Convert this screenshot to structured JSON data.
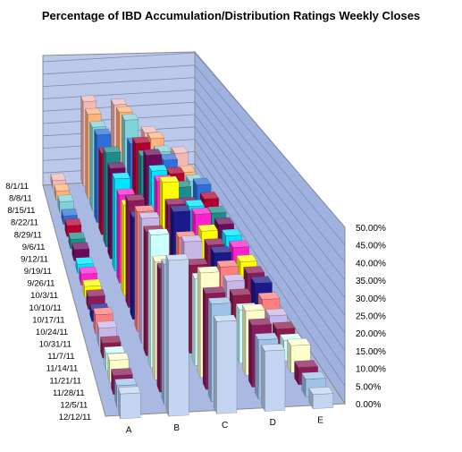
{
  "chart_data": {
    "type": "bar",
    "subtype": "3d-column",
    "title": "Percentage of IBD Accumulation/Distribution Ratings Weekly Closes",
    "categories": [
      "A",
      "B",
      "C",
      "D",
      "E"
    ],
    "series_axis_labels": [
      "8/1/11",
      "8/8/11",
      "8/15/11",
      "8/22/11",
      "8/29/11",
      "9/6/11",
      "9/12/11",
      "9/19/11",
      "9/26/11",
      "10/3/11",
      "10/10/11",
      "10/17/11",
      "10/24/11",
      "10/31/11",
      "11/7/11",
      "11/14/11",
      "11/21/11",
      "11/28/11",
      "12/5/11",
      "12/12/11"
    ],
    "series": [
      {
        "name": "8/1/11",
        "color": "#F2B8B8",
        "values": [
          3.0,
          34.0,
          32.0,
          20.0,
          11.0
        ]
      },
      {
        "name": "8/8/11",
        "color": "#FFB27A",
        "values": [
          3.5,
          33.0,
          33.0,
          22.0,
          8.0
        ]
      },
      {
        "name": "8/15/11",
        "color": "#7FD3D8",
        "values": [
          4.0,
          32.0,
          34.0,
          21.0,
          9.0
        ]
      },
      {
        "name": "8/22/11",
        "color": "#2F6FD9",
        "values": [
          3.2,
          33.0,
          29.0,
          22.0,
          12.0
        ]
      },
      {
        "name": "8/29/11",
        "color": "#B40030",
        "values": [
          4.0,
          30.0,
          33.0,
          21.0,
          11.0
        ]
      },
      {
        "name": "9/6/11",
        "color": "#1C8C8C",
        "values": [
          3.4,
          34.0,
          32.0,
          20.0,
          10.0
        ]
      },
      {
        "name": "9/12/11",
        "color": "#6B0A5A",
        "values": [
          4.0,
          32.0,
          36.0,
          18.0,
          10.0
        ]
      },
      {
        "name": "9/19/11",
        "color": "#00E5FF",
        "values": [
          3.0,
          32.0,
          34.0,
          21.0,
          10.0
        ]
      },
      {
        "name": "9/26/11",
        "color": "#FF20D0",
        "values": [
          3.8,
          30.0,
          34.0,
          22.0,
          10.0
        ]
      },
      {
        "name": "10/3/11",
        "color": "#FFFF00",
        "values": [
          3.6,
          30.0,
          37.0,
          20.0,
          9.0
        ]
      },
      {
        "name": "10/10/11",
        "color": "#8B1A5A",
        "values": [
          4.2,
          35.0,
          33.0,
          19.0,
          9.0
        ]
      },
      {
        "name": "10/17/11",
        "color": "#1A1A8C",
        "values": [
          3.5,
          33.0,
          34.0,
          20.0,
          9.5
        ]
      },
      {
        "name": "10/24/11",
        "color": "#FF7F7F",
        "values": [
          6.0,
          38.0,
          29.0,
          19.0,
          8.0
        ]
      },
      {
        "name": "10/31/11",
        "color": "#C7B7E8",
        "values": [
          5.5,
          39.0,
          31.0,
          18.0,
          6.5
        ]
      },
      {
        "name": "11/7/11",
        "color": "#8B1A4A",
        "values": [
          4.5,
          38.0,
          27.0,
          17.0,
          6.0
        ]
      },
      {
        "name": "11/14/11",
        "color": "#CCFFFF",
        "values": [
          5.0,
          40.0,
          26.0,
          16.0,
          6.0
        ]
      },
      {
        "name": "11/21/11",
        "color": "#FFFFCC",
        "values": [
          6.5,
          35.0,
          31.0,
          19.0,
          8.0
        ]
      },
      {
        "name": "11/28/11",
        "color": "#8B1A5A",
        "values": [
          5.5,
          36.0,
          28.0,
          18.0,
          5.0
        ]
      },
      {
        "name": "12/5/11",
        "color": "#9FC3E8",
        "values": [
          6.0,
          40.0,
          28.0,
          17.0,
          5.0
        ]
      },
      {
        "name": "12/12/11",
        "color": "#C3D5F0",
        "values": [
          7.0,
          44.0,
          26.0,
          17.0,
          4.0
        ]
      }
    ],
    "ylim": [
      0,
      50
    ],
    "yticks": [
      "0.00%",
      "5.00%",
      "10.00%",
      "15.00%",
      "20.00%",
      "25.00%",
      "30.00%",
      "35.00%",
      "40.00%",
      "45.00%",
      "50.00%"
    ],
    "grid": true,
    "legend": "none"
  }
}
